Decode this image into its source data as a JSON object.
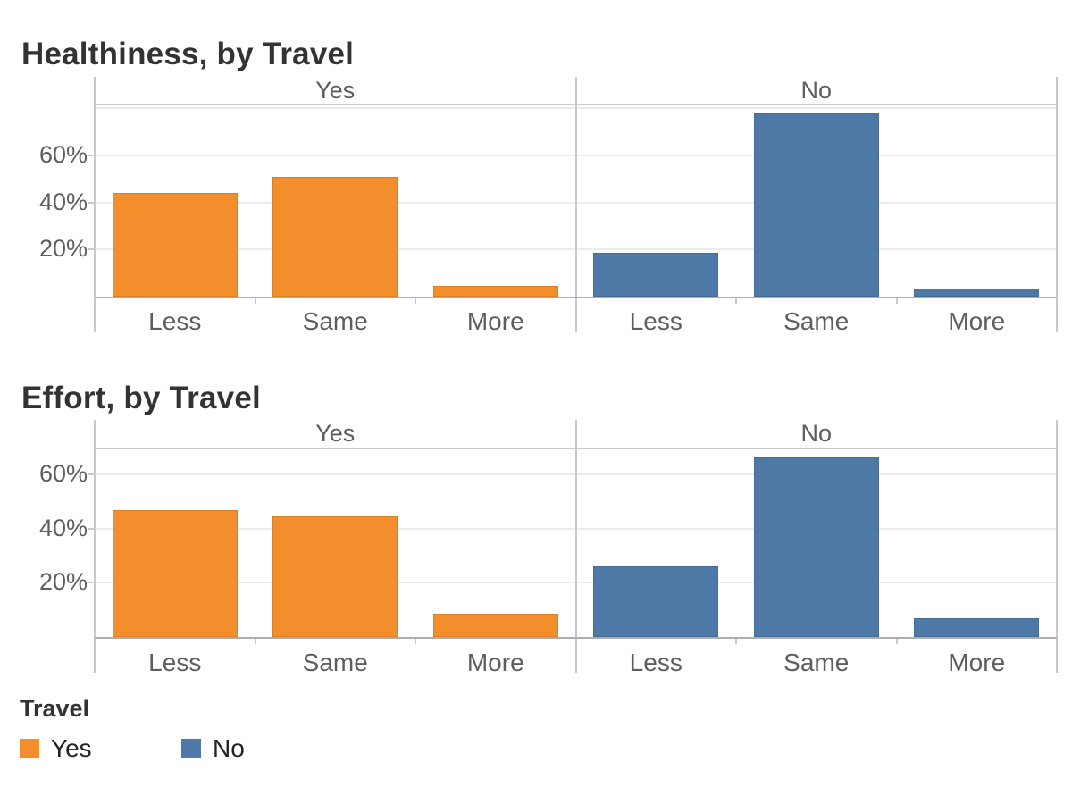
{
  "colors": {
    "travel_yes": "#F28E2B",
    "travel_no": "#4E79A7",
    "title_text": "#333333",
    "axis_text": "#5e5e5e",
    "gridline": "#ececec",
    "axis_line": "#c9c9c9",
    "baseline": "#aeaeae"
  },
  "chart_data": [
    {
      "type": "bar",
      "title": "Healthiness, by Travel",
      "facet_by": "Travel",
      "categories": [
        "Less",
        "Same",
        "More"
      ],
      "series": [
        {
          "name": "Yes",
          "color": "#F28E2B",
          "values": [
            44,
            51,
            4.5
          ]
        },
        {
          "name": "No",
          "color": "#4E79A7",
          "values": [
            18.5,
            78,
            3.5
          ]
        }
      ],
      "unit": "%",
      "ytick_labels": [
        "60%",
        "40%",
        "20%"
      ],
      "ytick_values": [
        60,
        40,
        20
      ],
      "ylim": [
        0,
        82
      ],
      "gridlines": [
        20,
        40,
        60,
        80
      ],
      "grid": true,
      "legend_position": "bottom"
    },
    {
      "type": "bar",
      "title": "Effort, by Travel",
      "facet_by": "Travel",
      "categories": [
        "Less",
        "Same",
        "More"
      ],
      "series": [
        {
          "name": "Yes",
          "color": "#F28E2B",
          "values": [
            47,
            44.5,
            8.5
          ]
        },
        {
          "name": "No",
          "color": "#4E79A7",
          "values": [
            26,
            66.5,
            7
          ]
        }
      ],
      "unit": "%",
      "ytick_labels": [
        "60%",
        "40%",
        "20%"
      ],
      "ytick_values": [
        60,
        40,
        20
      ],
      "ylim": [
        0,
        70
      ],
      "gridlines": [
        20,
        40,
        60
      ],
      "grid": true,
      "legend_position": "bottom"
    }
  ],
  "legend": {
    "title": "Travel",
    "items": [
      {
        "label": "Yes",
        "color": "#F28E2B"
      },
      {
        "label": "No",
        "color": "#4E79A7"
      }
    ]
  }
}
